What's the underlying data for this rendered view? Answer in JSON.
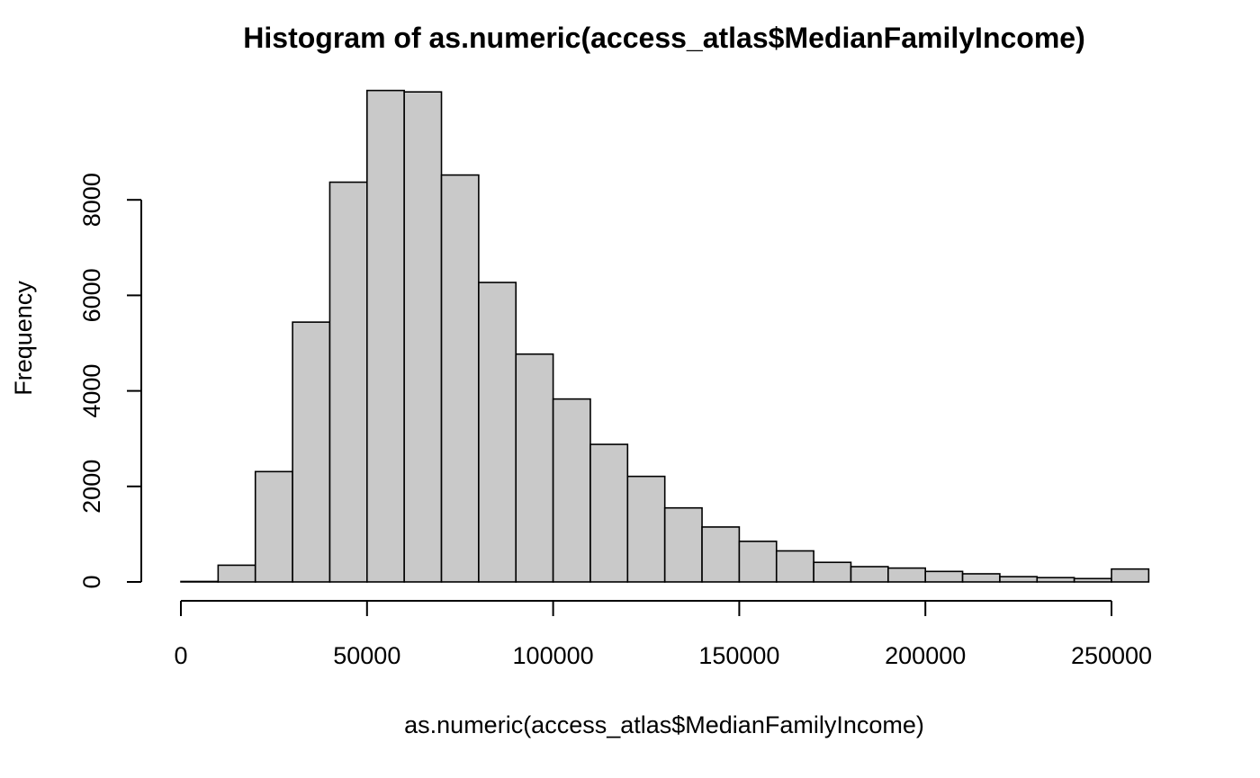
{
  "chart_data": {
    "type": "bar",
    "subtype": "histogram",
    "title": "Histogram of as.numeric(access_atlas$MedianFamilyIncome)",
    "xlabel": "as.numeric(access_atlas$MedianFamilyIncome)",
    "ylabel": "Frequency",
    "bin_width": 10000,
    "bins": [
      {
        "x0": 0,
        "x1": 10000,
        "count": 10
      },
      {
        "x0": 10000,
        "x1": 20000,
        "count": 350
      },
      {
        "x0": 20000,
        "x1": 30000,
        "count": 2310
      },
      {
        "x0": 30000,
        "x1": 40000,
        "count": 5440
      },
      {
        "x0": 40000,
        "x1": 50000,
        "count": 8370
      },
      {
        "x0": 50000,
        "x1": 60000,
        "count": 10290
      },
      {
        "x0": 60000,
        "x1": 70000,
        "count": 10260
      },
      {
        "x0": 70000,
        "x1": 80000,
        "count": 8520
      },
      {
        "x0": 80000,
        "x1": 90000,
        "count": 6270
      },
      {
        "x0": 90000,
        "x1": 100000,
        "count": 4770
      },
      {
        "x0": 100000,
        "x1": 110000,
        "count": 3830
      },
      {
        "x0": 110000,
        "x1": 120000,
        "count": 2880
      },
      {
        "x0": 120000,
        "x1": 130000,
        "count": 2210
      },
      {
        "x0": 130000,
        "x1": 140000,
        "count": 1550
      },
      {
        "x0": 140000,
        "x1": 150000,
        "count": 1150
      },
      {
        "x0": 150000,
        "x1": 160000,
        "count": 850
      },
      {
        "x0": 160000,
        "x1": 170000,
        "count": 650
      },
      {
        "x0": 170000,
        "x1": 180000,
        "count": 410
      },
      {
        "x0": 180000,
        "x1": 190000,
        "count": 320
      },
      {
        "x0": 190000,
        "x1": 200000,
        "count": 290
      },
      {
        "x0": 200000,
        "x1": 210000,
        "count": 220
      },
      {
        "x0": 210000,
        "x1": 220000,
        "count": 170
      },
      {
        "x0": 220000,
        "x1": 230000,
        "count": 110
      },
      {
        "x0": 230000,
        "x1": 240000,
        "count": 90
      },
      {
        "x0": 240000,
        "x1": 250000,
        "count": 70
      },
      {
        "x0": 250000,
        "x1": 260000,
        "count": 270
      }
    ],
    "xlim": [
      0,
      260000
    ],
    "ylim": [
      0,
      10000
    ],
    "x_ticks": [
      0,
      50000,
      100000,
      150000,
      200000,
      250000
    ],
    "x_tick_labels": [
      "0",
      "50000",
      "100000",
      "150000",
      "200000",
      "250000"
    ],
    "y_ticks": [
      0,
      2000,
      4000,
      6000,
      8000
    ],
    "y_tick_labels": [
      "0",
      "2000",
      "4000",
      "6000",
      "8000"
    ],
    "bar_fill": "#c9c9c9",
    "bar_stroke": "#000000",
    "grid": false,
    "legend": "none"
  }
}
